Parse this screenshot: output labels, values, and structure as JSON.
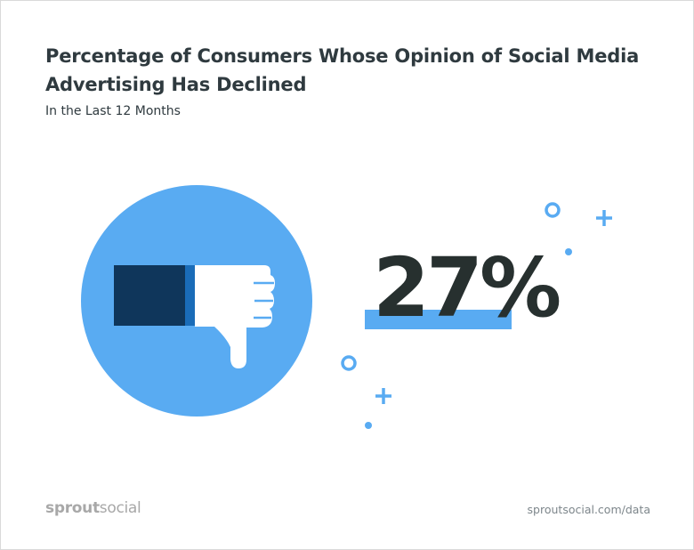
{
  "header": {
    "title": "Percentage of Consumers Whose Opinion of Social Media Advertising Has Declined",
    "subtitle": "In the Last 12 Months"
  },
  "statistic": {
    "value_label": "27%",
    "value": 27,
    "unit": "%"
  },
  "illustration": {
    "icon": "thumbs-down-icon",
    "decorations": [
      "ring-icon",
      "plus-icon",
      "dot-icon"
    ]
  },
  "footer": {
    "brand_part1": "sprout",
    "brand_part2": "social",
    "source": "sproutsocial.com/data"
  },
  "colors": {
    "accent_blue": "#59abf2",
    "sleeve_navy": "#0f365b",
    "cuff_blue": "#1a6cb8",
    "text_dark": "#2f3a3f",
    "logo_grey": "#a8a8a8",
    "source_grey": "#7d868b"
  }
}
